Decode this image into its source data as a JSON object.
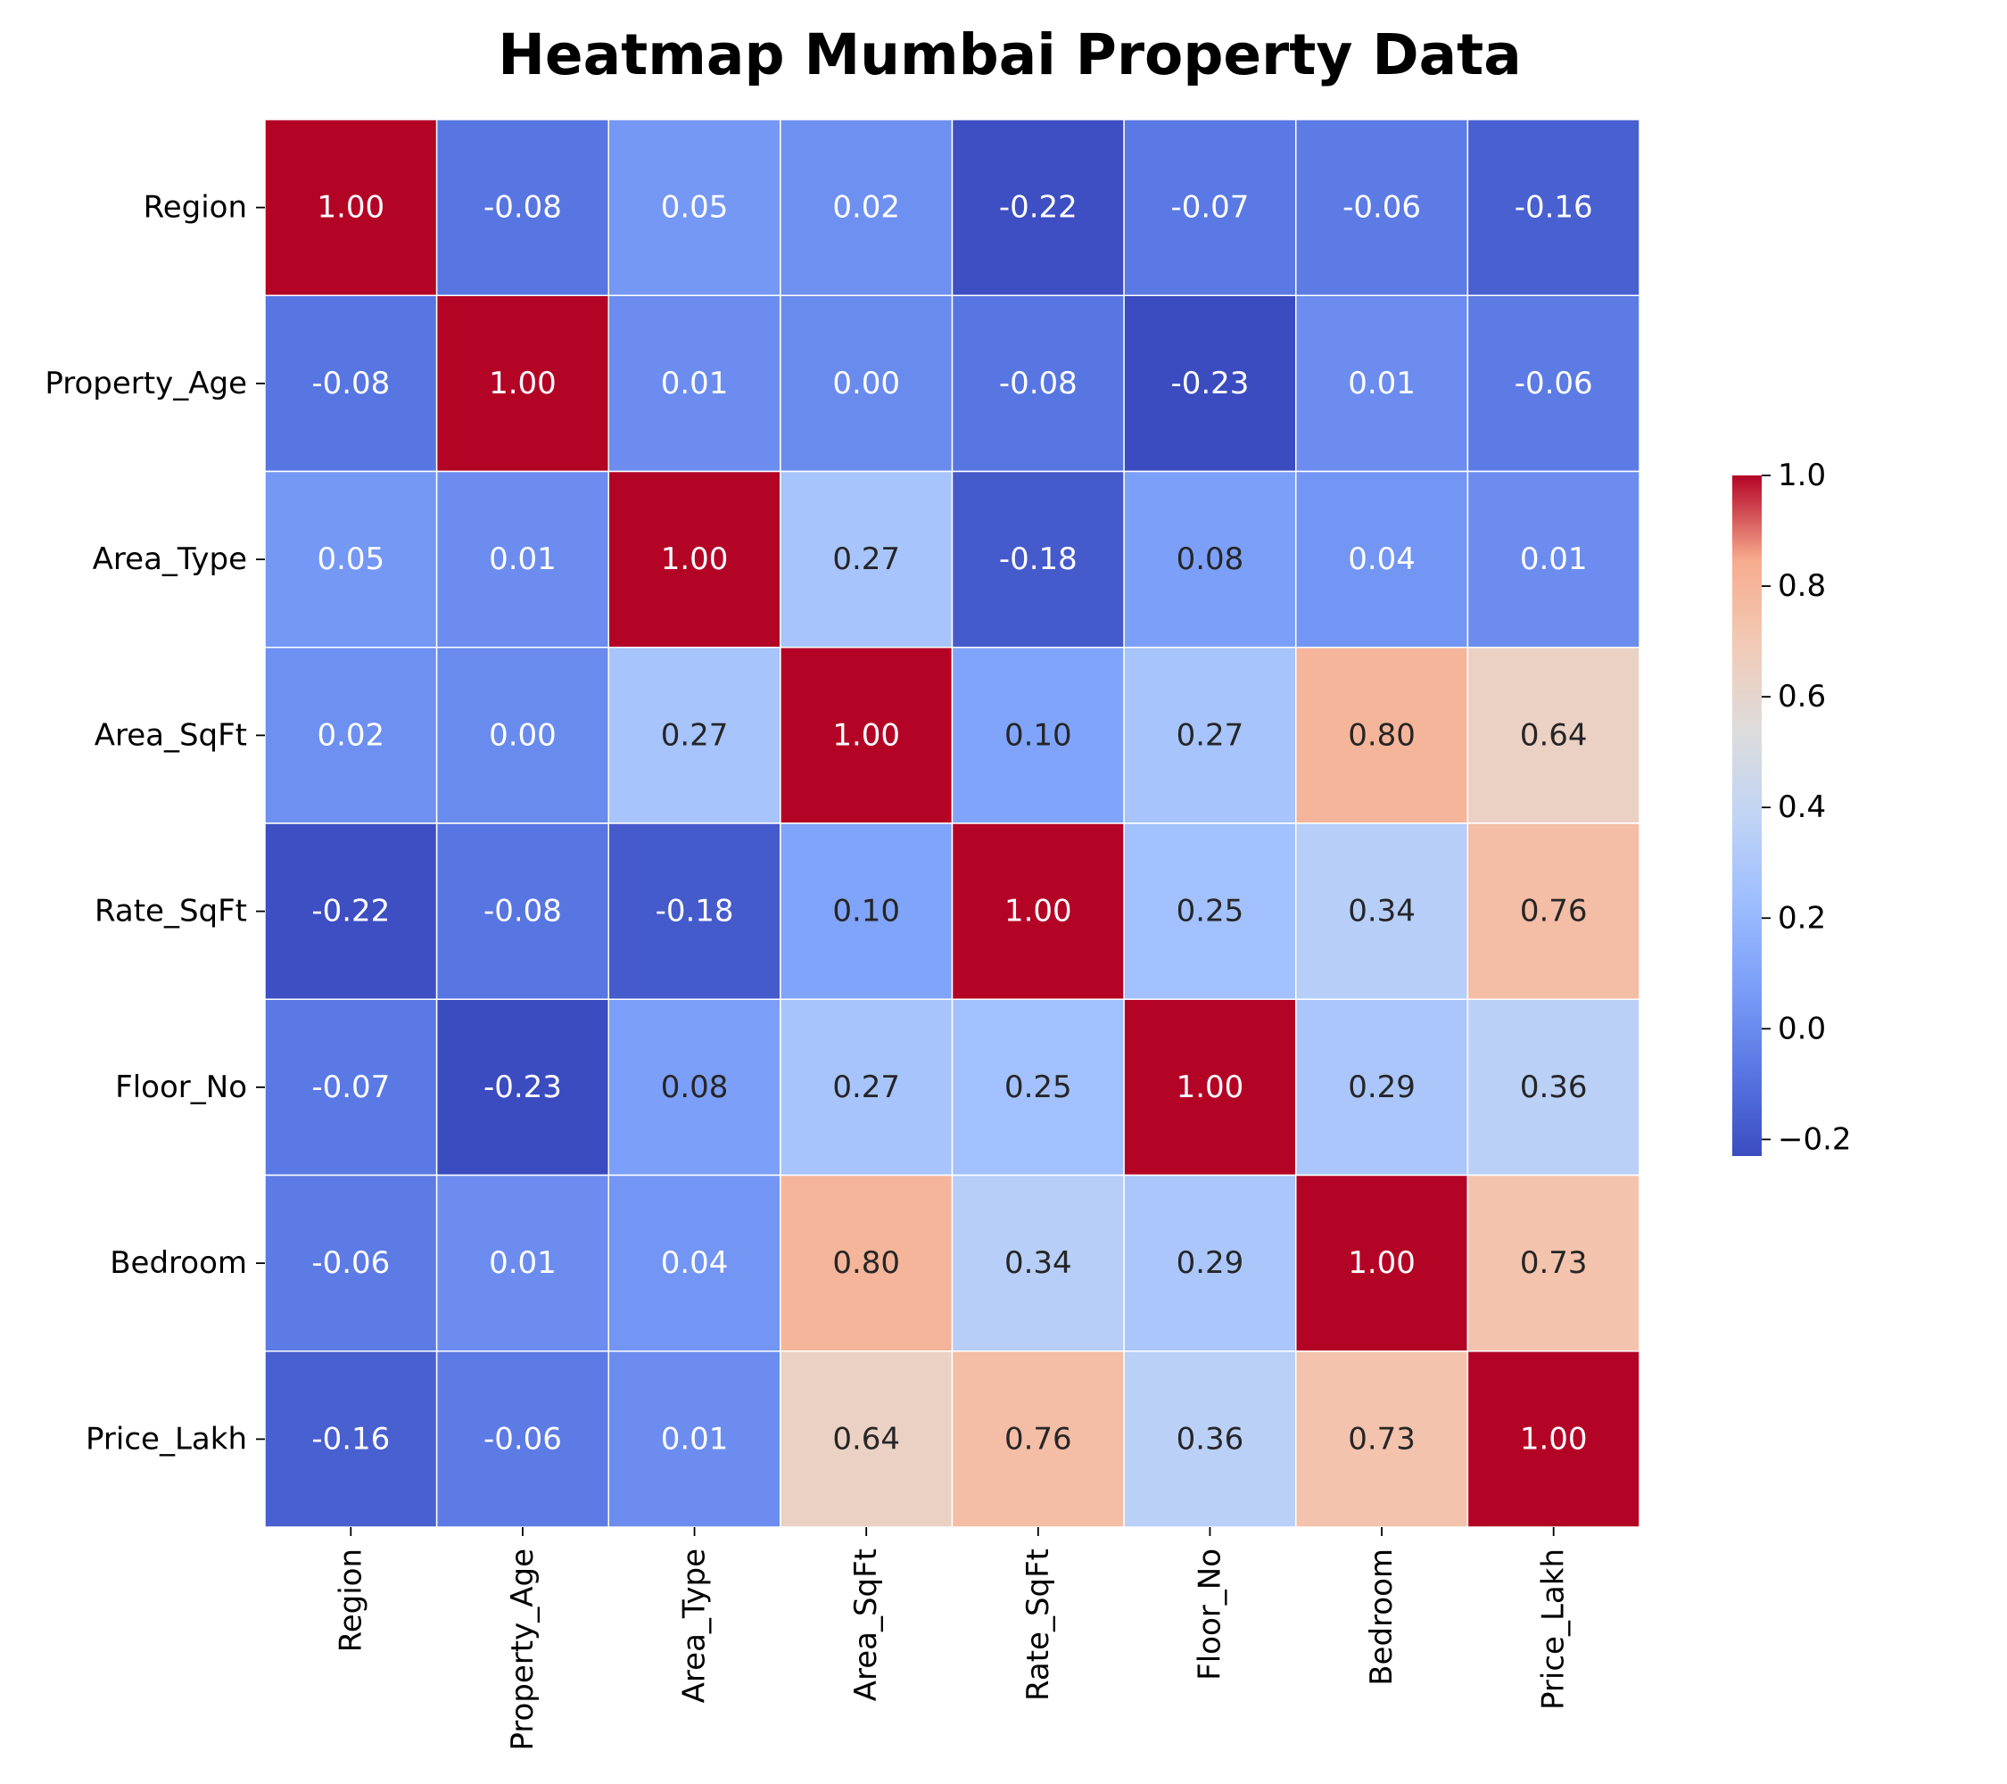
{
  "chart_data": {
    "type": "heatmap",
    "title": "Heatmap Mumbai Property Data",
    "x_labels": [
      "Region",
      "Property_Age",
      "Area_Type",
      "Area_SqFt",
      "Rate_SqFt",
      "Floor_No",
      "Bedroom",
      "Price_Lakh"
    ],
    "y_labels": [
      "Region",
      "Property_Age",
      "Area_Type",
      "Area_SqFt",
      "Rate_SqFt",
      "Floor_No",
      "Bedroom",
      "Price_Lakh"
    ],
    "values": [
      [
        1.0,
        -0.08,
        0.05,
        0.02,
        -0.22,
        -0.07,
        -0.06,
        -0.16
      ],
      [
        -0.08,
        1.0,
        0.01,
        0.0,
        -0.08,
        -0.23,
        0.01,
        -0.06
      ],
      [
        0.05,
        0.01,
        1.0,
        0.27,
        -0.18,
        0.08,
        0.04,
        0.01
      ],
      [
        0.02,
        0.0,
        0.27,
        1.0,
        0.1,
        0.27,
        0.8,
        0.64
      ],
      [
        -0.22,
        -0.08,
        -0.18,
        0.1,
        1.0,
        0.25,
        0.34,
        0.76
      ],
      [
        -0.07,
        -0.23,
        0.08,
        0.27,
        0.25,
        1.0,
        0.29,
        0.36
      ],
      [
        -0.06,
        0.01,
        0.04,
        0.8,
        0.34,
        0.29,
        1.0,
        0.73
      ],
      [
        -0.16,
        -0.06,
        0.01,
        0.64,
        0.76,
        0.36,
        0.73,
        1.0
      ]
    ],
    "value_format": "0.00",
    "colormap": "coolwarm",
    "colorbar": {
      "range": [
        -0.23,
        1.0
      ],
      "ticks": [
        1.0,
        0.8,
        0.6,
        0.4,
        0.2,
        0.0,
        -0.2
      ],
      "tick_labels": [
        "1.0",
        "0.8",
        "0.6",
        "0.4",
        "0.2",
        "0.0",
        "−0.2"
      ],
      "position": "right"
    },
    "x_label_rotation": "vertical"
  }
}
